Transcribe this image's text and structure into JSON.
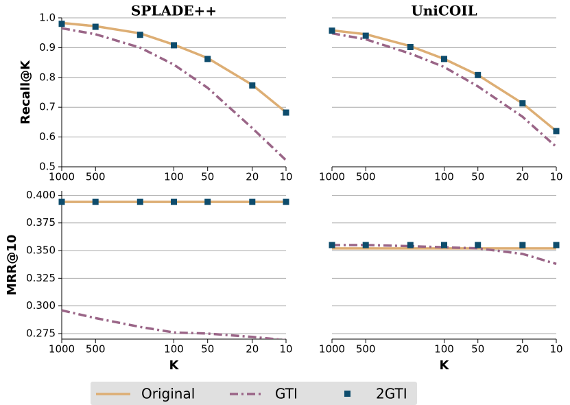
{
  "chart_data": [
    {
      "type": "line",
      "title": "SPLADE++",
      "ylabel": "Recall@K",
      "x": [
        1000,
        500,
        200,
        100,
        50,
        20,
        10
      ],
      "xscale": "log",
      "xlim": [
        1000,
        10
      ],
      "xticks": [
        1000,
        500,
        100,
        50,
        20,
        10
      ],
      "ylim": [
        0.5,
        1.0
      ],
      "yticks": [
        0.5,
        0.6,
        0.7,
        0.8,
        0.9,
        {
          "value": 1.0,
          "label": "1.0"
        }
      ],
      "grid": true,
      "ytick_labels": true,
      "series": [
        {
          "name": "Original",
          "color": "#ddae74",
          "style": "solid",
          "values": [
            0.983,
            0.972,
            0.948,
            0.91,
            0.865,
            0.775,
            0.683
          ]
        },
        {
          "name": "GTI",
          "color": "#9a6587",
          "style": "dashdot",
          "values": [
            0.965,
            0.945,
            0.9,
            0.843,
            0.765,
            0.63,
            0.522
          ]
        },
        {
          "name": "2GTI",
          "color": "#0e4c6c",
          "style": "marker",
          "values": [
            0.98,
            0.97,
            0.943,
            0.908,
            0.862,
            0.773,
            0.682
          ]
        }
      ]
    },
    {
      "type": "line",
      "title": "UniCOIL",
      "x": [
        1000,
        500,
        200,
        100,
        50,
        20,
        10
      ],
      "xscale": "log",
      "xlim": [
        1000,
        10
      ],
      "xticks": [
        1000,
        500,
        100,
        50,
        20,
        10
      ],
      "ylim": [
        0.5,
        1.0
      ],
      "yticks": [
        0.5,
        0.6,
        0.7,
        0.8,
        0.9,
        1.0
      ],
      "grid": true,
      "ytick_labels": false,
      "series": [
        {
          "name": "Original",
          "color": "#ddae74",
          "style": "solid",
          "values": [
            0.958,
            0.945,
            0.905,
            0.862,
            0.808,
            0.713,
            0.62
          ]
        },
        {
          "name": "GTI",
          "color": "#9a6587",
          "style": "dashdot",
          "values": [
            0.948,
            0.928,
            0.88,
            0.835,
            0.77,
            0.668,
            0.567
          ]
        },
        {
          "name": "2GTI",
          "color": "#0e4c6c",
          "style": "marker",
          "values": [
            0.957,
            0.94,
            0.902,
            0.862,
            0.808,
            0.713,
            0.62
          ]
        }
      ]
    },
    {
      "type": "line",
      "ylabel": "MRR@10",
      "xlabel": "K",
      "x": [
        1000,
        500,
        200,
        100,
        50,
        20,
        10
      ],
      "xscale": "log",
      "xlim": [
        1000,
        10
      ],
      "xticks": [
        1000,
        500,
        100,
        50,
        20,
        10
      ],
      "ylim": [
        0.27,
        0.404
      ],
      "yticks": [
        0.275,
        {
          "value": 0.3,
          "label": "0.300"
        },
        0.325,
        {
          "value": 0.35,
          "label": "0.350"
        },
        0.375,
        {
          "value": 0.4,
          "label": "0.400"
        }
      ],
      "grid": true,
      "ytick_labels": true,
      "series": [
        {
          "name": "Original",
          "color": "#ddae74",
          "style": "solid",
          "values": [
            0.394,
            0.394,
            0.394,
            0.394,
            0.394,
            0.394,
            0.394
          ]
        },
        {
          "name": "GTI",
          "color": "#9a6587",
          "style": "dashdot",
          "values": [
            0.296,
            0.289,
            0.281,
            0.276,
            0.275,
            0.272,
            0.269
          ]
        },
        {
          "name": "2GTI",
          "color": "#0e4c6c",
          "style": "marker",
          "values": [
            0.394,
            0.394,
            0.394,
            0.394,
            0.394,
            0.394,
            0.394
          ]
        }
      ]
    },
    {
      "type": "line",
      "xlabel": "K",
      "x": [
        1000,
        500,
        200,
        100,
        50,
        20,
        10
      ],
      "xscale": "log",
      "xlim": [
        1000,
        10
      ],
      "xticks": [
        1000,
        500,
        100,
        50,
        20,
        10
      ],
      "ylim": [
        0.27,
        0.404
      ],
      "yticks": [
        0.275,
        0.3,
        0.325,
        0.35,
        0.375,
        0.4
      ],
      "grid": true,
      "ytick_labels": false,
      "series": [
        {
          "name": "Original",
          "color": "#ddae74",
          "style": "solid",
          "values": [
            0.352,
            0.352,
            0.352,
            0.352,
            0.352,
            0.352,
            0.352
          ]
        },
        {
          "name": "GTI",
          "color": "#9a6587",
          "style": "dashdot",
          "values": [
            0.355,
            0.355,
            0.354,
            0.353,
            0.352,
            0.347,
            0.338
          ]
        },
        {
          "name": "2GTI",
          "color": "#0e4c6c",
          "style": "marker",
          "values": [
            0.355,
            0.355,
            0.355,
            0.355,
            0.355,
            0.355,
            0.355
          ]
        }
      ]
    }
  ]
}
